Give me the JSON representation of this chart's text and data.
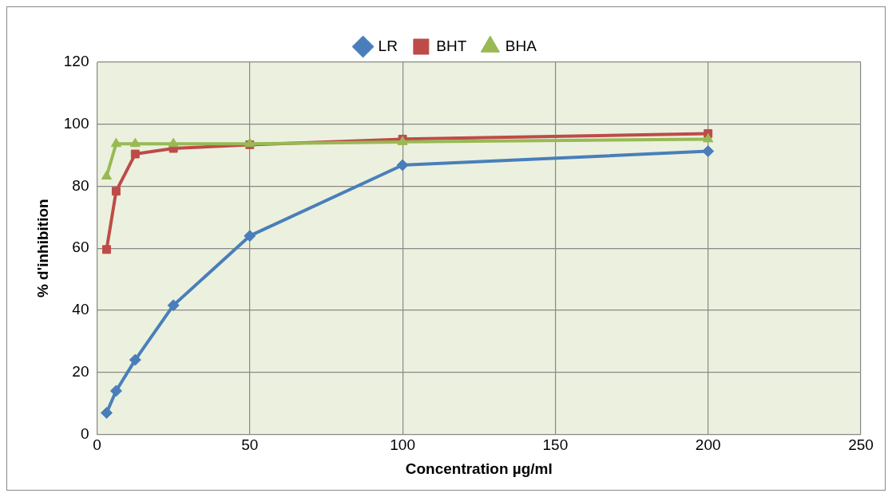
{
  "chart_data": {
    "type": "line",
    "xlabel": "Concentration µg/ml",
    "ylabel": "% d'inhibition",
    "x": [
      3.125,
      6.25,
      12.5,
      25,
      50,
      100,
      200
    ],
    "series": [
      {
        "name": "LR",
        "color": "#4a7ebb",
        "marker": "diamond",
        "values": [
          6.9,
          14,
          24,
          41.6,
          64,
          86.8,
          91.3
        ]
      },
      {
        "name": "BHT",
        "color": "#be4b48",
        "marker": "square",
        "values": [
          59.6,
          78.4,
          90.4,
          92.2,
          93.4,
          95.2,
          97
        ]
      },
      {
        "name": "BHA",
        "color": "#98b954",
        "marker": "triangle",
        "values": [
          83.2,
          93.7,
          93.7,
          93.7,
          93.7,
          94.3,
          95.2
        ]
      }
    ],
    "xlim": [
      0,
      250
    ],
    "xticks": [
      0,
      50,
      100,
      150,
      200,
      250
    ],
    "ylim": [
      0,
      120
    ],
    "yticks": [
      0,
      20,
      40,
      60,
      80,
      100,
      120
    ],
    "grid": true,
    "legend": "top",
    "line_style": "solid"
  }
}
